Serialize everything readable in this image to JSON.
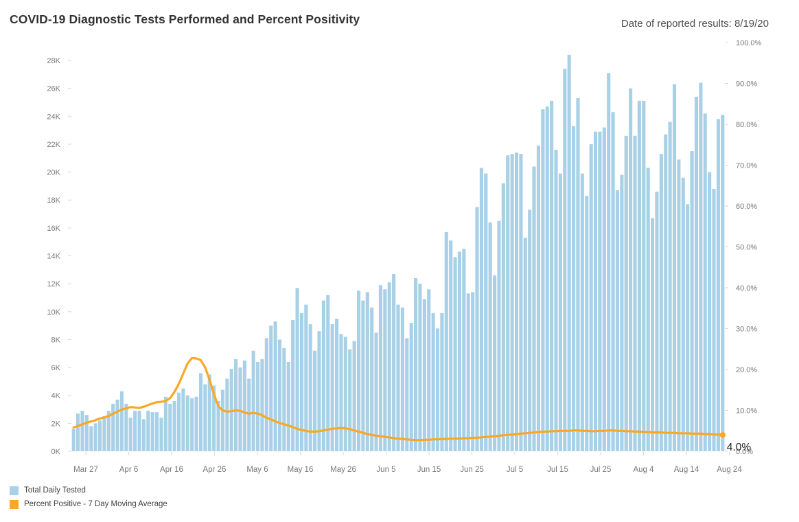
{
  "header": {
    "title": "COVID-19 Diagnostic Tests Performed and Percent Positivity",
    "date_note": "Date of reported results: 8/19/20"
  },
  "annotation": {
    "text": "4.0%"
  },
  "legend": {
    "items": [
      {
        "label": "Total Daily Tested",
        "color": "#A8D1E7"
      },
      {
        "label": "Percent Positive - 7 Day Moving Average",
        "color": "#F9A825"
      }
    ]
  },
  "chart_data": {
    "type": "combo (bar + line)",
    "title": "COVID-19 Diagnostic Tests Performed and Percent Positivity",
    "x_axis": {
      "start": "Mar 24",
      "end": "Aug 19",
      "unit": "day"
    },
    "x_tick_labels": [
      "Mar 27",
      "Apr 6",
      "Apr 16",
      "Apr 26",
      "May 6",
      "May 16",
      "May 26",
      "Jun 5",
      "Jun 15",
      "Jun 25",
      "Jul 5",
      "Jul 15",
      "Jul 25",
      "Aug 4",
      "Aug 14",
      "Aug 24"
    ],
    "y_left": {
      "title": "Total Daily Tested",
      "min": 0,
      "max": 28000,
      "tick_step": 2000,
      "tick_labels": [
        "0K",
        "2K",
        "4K",
        "6K",
        "8K",
        "10K",
        "12K",
        "14K",
        "16K",
        "18K",
        "20K",
        "22K",
        "24K",
        "26K",
        "28K"
      ]
    },
    "y_right": {
      "title": "Percent Positive",
      "min": 0,
      "max": 100,
      "tick_step": 10,
      "tick_labels": [
        "0.0%",
        "10.0%",
        "20.0%",
        "30.0%",
        "40.0%",
        "50.0%",
        "60.0%",
        "70.0%",
        "80.0%",
        "90.0%",
        "100.0%"
      ]
    },
    "grid": false,
    "legend_position": "bottom-left",
    "series": [
      {
        "name": "Total Daily Tested",
        "type": "bar",
        "color": "#A8D1E7",
        "unit": "tests (thousands)",
        "values_thousands": [
          1.6,
          2.7,
          2.9,
          2.6,
          1.8,
          2.0,
          2.2,
          2.5,
          2.9,
          3.4,
          3.7,
          4.3,
          3.4,
          2.4,
          2.9,
          2.9,
          2.3,
          2.9,
          2.8,
          2.8,
          2.4,
          3.9,
          3.4,
          3.6,
          4.2,
          4.5,
          4.0,
          3.8,
          3.9,
          5.6,
          4.8,
          5.5,
          4.7,
          3.6,
          4.4,
          5.2,
          5.9,
          6.6,
          6.0,
          6.5,
          5.2,
          7.2,
          6.4,
          6.6,
          8.1,
          9.0,
          9.3,
          8.0,
          7.4,
          6.4,
          9.4,
          11.7,
          9.9,
          10.5,
          9.1,
          7.2,
          8.6,
          10.8,
          11.2,
          9.1,
          9.5,
          8.4,
          8.2,
          7.3,
          7.9,
          11.5,
          10.8,
          11.4,
          10.3,
          8.5,
          11.9,
          11.6,
          12.1,
          12.7,
          10.5,
          10.3,
          8.1,
          9.2,
          12.4,
          12.0,
          10.9,
          11.6,
          9.9,
          8.8,
          9.9,
          15.7,
          15.1,
          13.9,
          14.3,
          14.5,
          11.3,
          11.4,
          17.5,
          20.3,
          19.9,
          16.4,
          12.6,
          16.5,
          19.2,
          21.2,
          21.3,
          21.4,
          21.3,
          15.3,
          17.3,
          20.4,
          21.9,
          24.5,
          24.7,
          25.1,
          21.6,
          19.9,
          27.4,
          28.4,
          23.3,
          25.3,
          19.9,
          18.3,
          22.0,
          22.9,
          22.9,
          23.2,
          27.1,
          24.3,
          18.7,
          19.8,
          22.6,
          26.0,
          22.6,
          25.1,
          25.1,
          20.3,
          16.7,
          18.6,
          21.3,
          22.7,
          23.6,
          26.3,
          20.9,
          19.6,
          17.7,
          21.5,
          25.4,
          26.4,
          24.2,
          20.0,
          18.8,
          23.8,
          24.1
        ]
      },
      {
        "name": "Percent Positive - 7 Day Moving Average",
        "type": "line",
        "color": "#F9A825",
        "unit": "%",
        "last_value_label": "4.0%",
        "values_percent": [
          5.8,
          6.2,
          6.6,
          7.0,
          7.3,
          7.6,
          8.0,
          8.3,
          8.6,
          9.2,
          9.7,
          10.2,
          10.5,
          10.8,
          10.7,
          10.6,
          10.9,
          11.3,
          11.7,
          12.0,
          12.1,
          12.3,
          13.0,
          14.5,
          16.5,
          19.0,
          21.5,
          22.8,
          22.7,
          22.3,
          20.5,
          17.5,
          14.0,
          11.0,
          10.0,
          9.7,
          9.8,
          10.0,
          9.9,
          9.5,
          9.2,
          9.4,
          9.2,
          8.8,
          8.2,
          7.8,
          7.3,
          6.9,
          6.6,
          6.3,
          5.9,
          5.5,
          5.2,
          5.0,
          4.8,
          4.8,
          4.9,
          5.1,
          5.3,
          5.5,
          5.6,
          5.7,
          5.6,
          5.4,
          5.1,
          4.8,
          4.5,
          4.2,
          4.0,
          3.8,
          3.7,
          3.5,
          3.4,
          3.2,
          3.1,
          3.0,
          2.9,
          2.8,
          2.7,
          2.7,
          2.8,
          2.8,
          2.9,
          2.9,
          3.0,
          3.0,
          3.1,
          3.1,
          3.1,
          3.2,
          3.2,
          3.3,
          3.3,
          3.4,
          3.5,
          3.6,
          3.7,
          3.8,
          3.9,
          4.0,
          4.1,
          4.2,
          4.3,
          4.4,
          4.5,
          4.6,
          4.7,
          4.8,
          4.8,
          4.9,
          4.9,
          5.0,
          5.0,
          5.0,
          5.1,
          5.1,
          5.0,
          5.0,
          4.9,
          4.9,
          5.0,
          5.0,
          5.1,
          5.1,
          5.0,
          5.0,
          4.9,
          4.9,
          4.8,
          4.8,
          4.7,
          4.7,
          4.6,
          4.6,
          4.6,
          4.5,
          4.5,
          4.5,
          4.4,
          4.4,
          4.4,
          4.3,
          4.3,
          4.3,
          4.2,
          4.2,
          4.1,
          4.1,
          4.0
        ]
      }
    ]
  }
}
